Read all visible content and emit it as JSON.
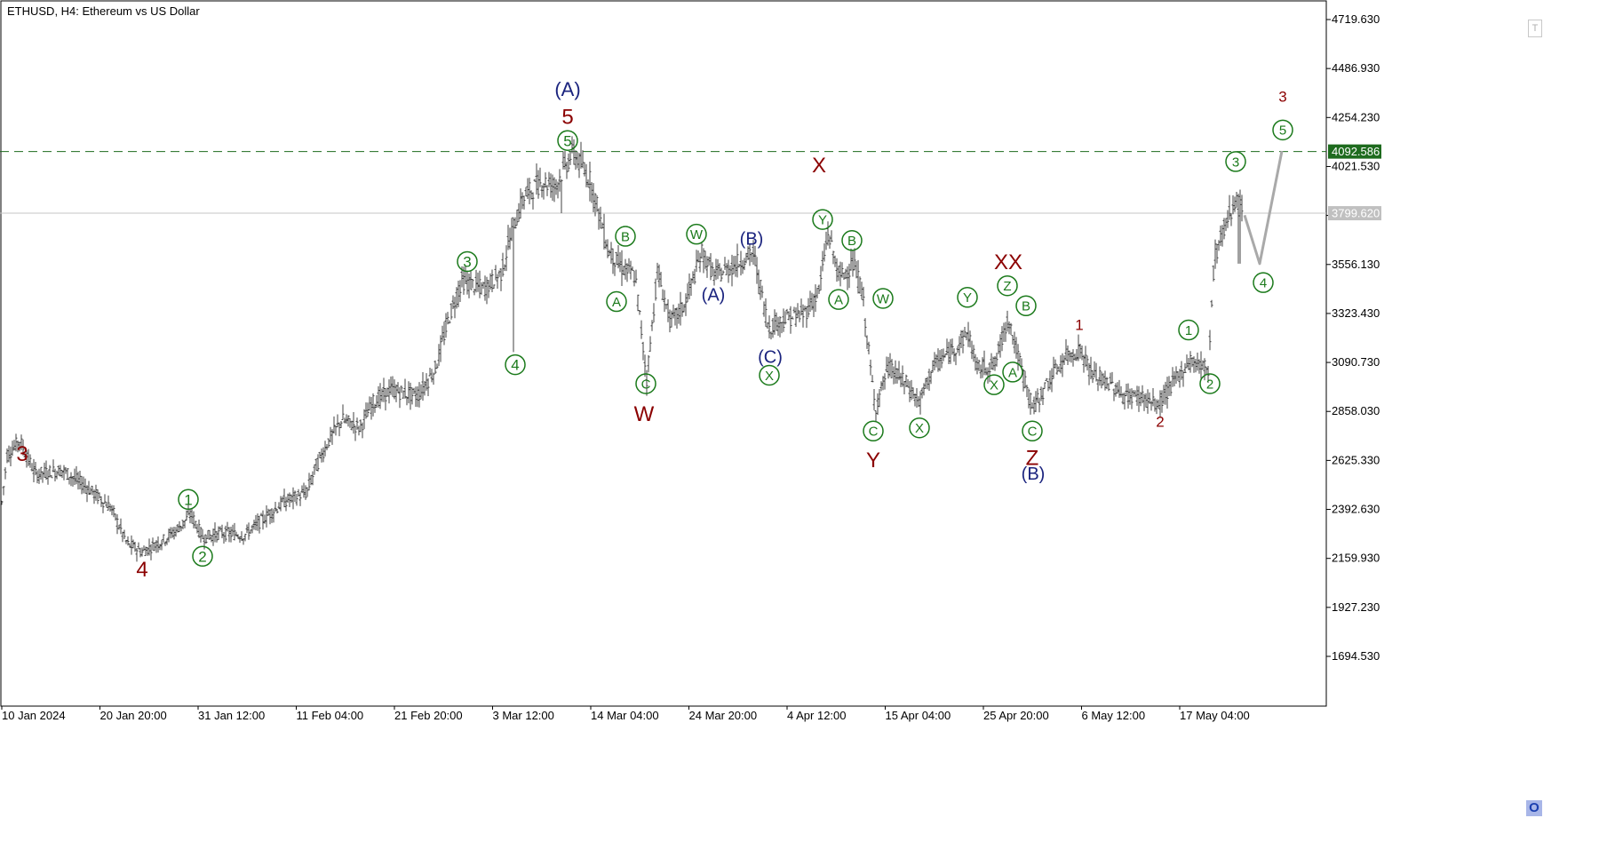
{
  "chart": {
    "title": "ETHUSD, H4:  Ethereum vs US Dollar"
  },
  "toolbar": {
    "top_button": "T",
    "bottom_button": "O"
  },
  "colors": {
    "bar": "#404040",
    "green": "#1b7a1b",
    "darkred": "#8b0000",
    "navy": "#1a237e",
    "projection": "#a9a9a9",
    "resistance_tag": "#1e6b1e",
    "current_tag": "#c0c0c0"
  },
  "chart_data": {
    "type": "candlestick",
    "ylim": [
      1500,
      4800
    ],
    "y_ticks": [
      4719.63,
      4486.93,
      4254.23,
      4021.53,
      3789.03,
      3556.13,
      3323.43,
      3090.73,
      2858.03,
      2625.33,
      2392.63,
      2159.93,
      1927.23,
      1694.53
    ],
    "y_tick_labels": [
      "4719.630",
      "4486.930",
      "4254.230",
      "4021.530",
      "",
      "3556.130",
      "3323.430",
      "3090.730",
      "2858.030",
      "2625.330",
      "2392.630",
      "2159.930",
      "1927.230",
      "1694.530"
    ],
    "x_tick_labels": [
      "10 Jan 2024",
      "20 Jan 20:00",
      "31 Jan 12:00",
      "11 Feb 04:00",
      "21 Feb 20:00",
      "3 Mar 12:00",
      "14 Mar 04:00",
      "24 Mar 20:00",
      "4 Apr 12:00",
      "15 Apr 04:00",
      "25 Apr 20:00",
      "6 May 12:00",
      "17 May 04:00"
    ],
    "levels": [
      {
        "name": "resistance",
        "value": 4092.586,
        "label": "4092.586",
        "style": "dashed",
        "color": "#1e6b1e"
      },
      {
        "name": "current-price",
        "value": 3799.62,
        "label": "3799.620",
        "style": "solid",
        "color": "#c0c0c0"
      }
    ],
    "price_path": [
      [
        0,
        2350
      ],
      [
        8,
        2650
      ],
      [
        22,
        2720
      ],
      [
        40,
        2560
      ],
      [
        70,
        2580
      ],
      [
        100,
        2490
      ],
      [
        125,
        2400
      ],
      [
        143,
        2230
      ],
      [
        160,
        2190
      ],
      [
        185,
        2250
      ],
      [
        200,
        2300
      ],
      [
        215,
        2370
      ],
      [
        228,
        2260
      ],
      [
        250,
        2280
      ],
      [
        275,
        2270
      ],
      [
        300,
        2360
      ],
      [
        320,
        2430
      ],
      [
        345,
        2470
      ],
      [
        355,
        2590
      ],
      [
        370,
        2720
      ],
      [
        385,
        2820
      ],
      [
        405,
        2780
      ],
      [
        420,
        2900
      ],
      [
        440,
        2960
      ],
      [
        470,
        2930
      ],
      [
        490,
        3060
      ],
      [
        505,
        3300
      ],
      [
        520,
        3480
      ],
      [
        545,
        3440
      ],
      [
        565,
        3520
      ],
      [
        575,
        3700
      ],
      [
        590,
        3880
      ],
      [
        610,
        3950
      ],
      [
        625,
        3930
      ],
      [
        645,
        4090
      ],
      [
        665,
        3950
      ],
      [
        685,
        3620
      ],
      [
        700,
        3540
      ],
      [
        715,
        3500
      ],
      [
        728,
        3010
      ],
      [
        740,
        3520
      ],
      [
        755,
        3280
      ],
      [
        770,
        3360
      ],
      [
        790,
        3610
      ],
      [
        805,
        3500
      ],
      [
        825,
        3550
      ],
      [
        848,
        3610
      ],
      [
        865,
        3260
      ],
      [
        885,
        3300
      ],
      [
        905,
        3320
      ],
      [
        922,
        3430
      ],
      [
        932,
        3710
      ],
      [
        945,
        3490
      ],
      [
        960,
        3560
      ],
      [
        970,
        3440
      ],
      [
        985,
        2870
      ],
      [
        1000,
        3070
      ],
      [
        1020,
        2990
      ],
      [
        1035,
        2900
      ],
      [
        1050,
        3070
      ],
      [
        1075,
        3160
      ],
      [
        1090,
        3230
      ],
      [
        1100,
        3060
      ],
      [
        1120,
        3080
      ],
      [
        1135,
        3310
      ],
      [
        1145,
        3130
      ],
      [
        1163,
        2870
      ],
      [
        1180,
        3000
      ],
      [
        1200,
        3120
      ],
      [
        1216,
        3150
      ],
      [
        1230,
        3030
      ],
      [
        1250,
        2990
      ],
      [
        1265,
        2930
      ],
      [
        1285,
        2930
      ],
      [
        1303,
        2880
      ],
      [
        1320,
        2990
      ],
      [
        1340,
        3100
      ],
      [
        1360,
        3060
      ],
      [
        1367,
        3590
      ],
      [
        1380,
        3750
      ],
      [
        1392,
        3880
      ],
      [
        1398,
        3800
      ]
    ],
    "projection": [
      [
        1401,
        3790
      ],
      [
        1418,
        3560
      ],
      [
        1443,
        4095
      ]
    ],
    "wave_labels": [
      {
        "text": "3",
        "x": 25,
        "y": 2660,
        "color": "darkred",
        "size": 24,
        "circled": false
      },
      {
        "text": "4",
        "x": 160,
        "y": 2110,
        "color": "darkred",
        "size": 24,
        "circled": false
      },
      {
        "text": "1",
        "x": 212,
        "y": 2440,
        "color": "green",
        "size": 17,
        "circled": true
      },
      {
        "text": "2",
        "x": 228,
        "y": 2170,
        "color": "green",
        "size": 17,
        "circled": true
      },
      {
        "text": "3",
        "x": 526,
        "y": 3570,
        "color": "green",
        "size": 17,
        "circled": true
      },
      {
        "text": "4",
        "x": 580,
        "y": 3080,
        "color": "green",
        "size": 17,
        "circled": true
      },
      {
        "text": "(A)",
        "x": 639,
        "y": 4390,
        "color": "navy",
        "size": 22,
        "circled": false
      },
      {
        "text": "5",
        "x": 639,
        "y": 4260,
        "color": "darkred",
        "size": 24,
        "circled": false
      },
      {
        "text": "5",
        "x": 639,
        "y": 4145,
        "color": "green",
        "size": 17,
        "circled": true
      },
      {
        "text": "B",
        "x": 704,
        "y": 3690,
        "color": "green",
        "size": 15,
        "circled": true
      },
      {
        "text": "A",
        "x": 694,
        "y": 3380,
        "color": "green",
        "size": 15,
        "circled": true
      },
      {
        "text": "C",
        "x": 727,
        "y": 2990,
        "color": "green",
        "size": 15,
        "circled": true
      },
      {
        "text": "W",
        "x": 725,
        "y": 2850,
        "color": "darkred",
        "size": 24,
        "circled": false
      },
      {
        "text": "W",
        "x": 784,
        "y": 3700,
        "color": "green",
        "size": 15,
        "circled": true
      },
      {
        "text": "(A)",
        "x": 803,
        "y": 3415,
        "color": "navy",
        "size": 20,
        "circled": false
      },
      {
        "text": "(B)",
        "x": 846,
        "y": 3680,
        "color": "navy",
        "size": 20,
        "circled": false
      },
      {
        "text": "(C)",
        "x": 867,
        "y": 3120,
        "color": "navy",
        "size": 20,
        "circled": false
      },
      {
        "text": "X",
        "x": 866,
        "y": 3030,
        "color": "green",
        "size": 15,
        "circled": true
      },
      {
        "text": "X",
        "x": 922,
        "y": 4030,
        "color": "darkred",
        "size": 24,
        "circled": false
      },
      {
        "text": "Y",
        "x": 926,
        "y": 3770,
        "color": "green",
        "size": 15,
        "circled": true
      },
      {
        "text": "B",
        "x": 959,
        "y": 3670,
        "color": "green",
        "size": 15,
        "circled": true
      },
      {
        "text": "A",
        "x": 944,
        "y": 3390,
        "color": "green",
        "size": 15,
        "circled": true
      },
      {
        "text": "W",
        "x": 994,
        "y": 3395,
        "color": "green",
        "size": 15,
        "circled": true
      },
      {
        "text": "C",
        "x": 983,
        "y": 2765,
        "color": "green",
        "size": 15,
        "circled": true
      },
      {
        "text": "Y",
        "x": 983,
        "y": 2630,
        "color": "darkred",
        "size": 24,
        "circled": false
      },
      {
        "text": "X",
        "x": 1035,
        "y": 2780,
        "color": "green",
        "size": 15,
        "circled": true
      },
      {
        "text": "Y",
        "x": 1089,
        "y": 3400,
        "color": "green",
        "size": 15,
        "circled": true
      },
      {
        "text": "XX",
        "x": 1135,
        "y": 3570,
        "color": "darkred",
        "size": 24,
        "circled": false
      },
      {
        "text": "Z",
        "x": 1134,
        "y": 3455,
        "color": "green",
        "size": 15,
        "circled": true
      },
      {
        "text": "B",
        "x": 1155,
        "y": 3360,
        "color": "green",
        "size": 15,
        "circled": true
      },
      {
        "text": "A",
        "x": 1140,
        "y": 3045,
        "color": "green",
        "size": 15,
        "circled": true
      },
      {
        "text": "X",
        "x": 1119,
        "y": 2985,
        "color": "green",
        "size": 15,
        "circled": true
      },
      {
        "text": "C",
        "x": 1162,
        "y": 2765,
        "color": "green",
        "size": 15,
        "circled": true
      },
      {
        "text": "Z",
        "x": 1162,
        "y": 2640,
        "color": "darkred",
        "size": 24,
        "circled": false
      },
      {
        "text": "(B)",
        "x": 1163,
        "y": 2565,
        "color": "navy",
        "size": 20,
        "circled": false
      },
      {
        "text": "1",
        "x": 1215,
        "y": 3270,
        "color": "darkred",
        "size": 17,
        "circled": false
      },
      {
        "text": "2",
        "x": 1306,
        "y": 2810,
        "color": "darkred",
        "size": 17,
        "circled": false
      },
      {
        "text": "1",
        "x": 1338,
        "y": 3245,
        "color": "green",
        "size": 15,
        "circled": true
      },
      {
        "text": "2",
        "x": 1362,
        "y": 2990,
        "color": "green",
        "size": 15,
        "circled": true
      },
      {
        "text": "3",
        "x": 1391,
        "y": 4045,
        "color": "green",
        "size": 15,
        "circled": true
      },
      {
        "text": "4",
        "x": 1422,
        "y": 3470,
        "color": "green",
        "size": 15,
        "circled": true
      },
      {
        "text": "3",
        "x": 1444,
        "y": 4355,
        "color": "darkred",
        "size": 17,
        "circled": false
      },
      {
        "text": "5",
        "x": 1444,
        "y": 4195,
        "color": "green",
        "size": 15,
        "circled": true
      }
    ]
  }
}
